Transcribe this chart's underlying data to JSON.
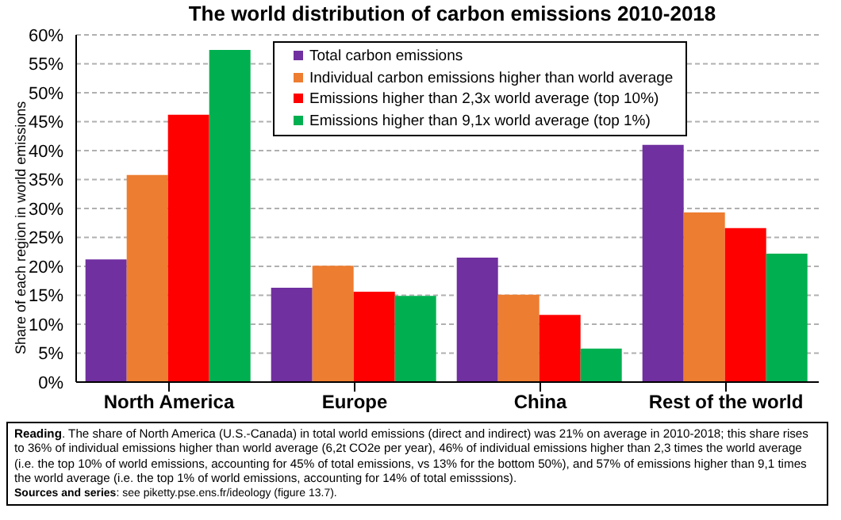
{
  "chart_data": {
    "type": "bar",
    "title": "The world distribution of carbon emissions 2010-2018",
    "ylabel": "Share of each region in world emissions",
    "categories": [
      "North America",
      "Europe",
      "China",
      "Rest of the world"
    ],
    "series": [
      {
        "name": "Total carbon emissions",
        "color": "#7030a0",
        "values": [
          21.2,
          16.3,
          21.5,
          41
        ]
      },
      {
        "name": "Individual carbon emissions higher than world average",
        "color": "#ed7d31",
        "values": [
          35.8,
          20.1,
          15.1,
          29.3
        ]
      },
      {
        "name": "Emissions higher than 2,3x world average (top 10%)",
        "color": "#ff0000",
        "values": [
          46.2,
          15.6,
          11.6,
          26.6
        ]
      },
      {
        "name": "Emissions higher than 9,1x world average (top 1%)",
        "color": "#00b050",
        "values": [
          57.4,
          14.9,
          5.8,
          22.2
        ]
      }
    ],
    "ylim": [
      0,
      60
    ],
    "yticks": [
      {
        "value": 0,
        "label": "0%"
      },
      {
        "value": 5,
        "label": "5%"
      },
      {
        "value": 10,
        "label": "10%"
      },
      {
        "value": 15,
        "label": "15%"
      },
      {
        "value": 20,
        "label": "20%"
      },
      {
        "value": 25,
        "label": "25%"
      },
      {
        "value": 30,
        "label": "30%"
      },
      {
        "value": 35,
        "label": "35%"
      },
      {
        "value": 40,
        "label": "40%"
      },
      {
        "value": 45,
        "label": "45%"
      },
      {
        "value": 50,
        "label": "50%"
      },
      {
        "value": 55,
        "label": "55%"
      },
      {
        "value": 60,
        "label": "60%"
      }
    ],
    "grid": "y",
    "legend": "top",
    "annotations": [
      "Reading. The share of North America (U.S.-Canada) in total world emissions (direct and indirect) was 21% on average in 2010-2018; this share rises to 36% of individual emissions higher than world average (6,2t CO2e per year), 46% of individual emissions higher than 2,3 times the world average (i.e. the top 10% of world emissions, accounting for 45% of total emissions, vs 13% for the bottom 50%), and 57% of emissions higher than 9,1 times the world average (i.e. the top 1% of world emissions, accounting for 14% of total emisssions).",
      "Sources and series: see piketty.pse.ens.fr/ideology (figure 13.7)."
    ]
  }
}
